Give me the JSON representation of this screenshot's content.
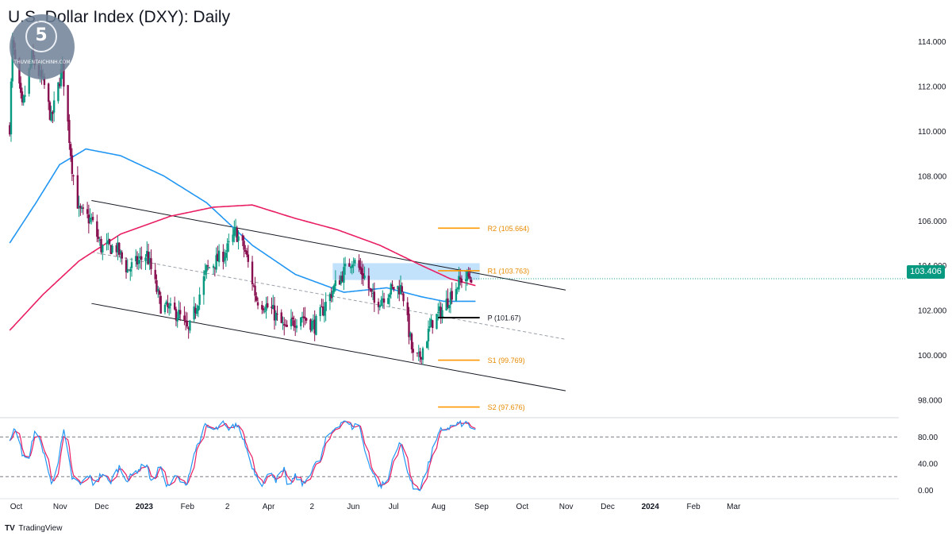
{
  "header": {
    "title": "U.S. Dollar Index (DXY): Daily"
  },
  "footer": {
    "brand_mark": "TV",
    "brand": "TradingView"
  },
  "watermark": {
    "mark": "5",
    "text": "THUVIENTAICHINH.COM",
    "icon": "logo-seal"
  },
  "colors": {
    "candle_up": "#089981",
    "candle_down": "#880e4f",
    "sma_fast": "#2196f3",
    "sma_slow": "#e91e63",
    "pivot_levels": "#ff9800",
    "pivot": "#000000",
    "resistance_zone": "#90c8f8",
    "channel": "#131722",
    "stoch_k": "#2196f3",
    "stoch_d": "#e91e63",
    "last_price_bg": "#089981"
  },
  "chart_data": [
    {
      "type": "candlestick",
      "title": "U.S. Dollar Index (DXY): Daily",
      "y_ticks": [
        "114.000",
        "112.000",
        "110.000",
        "108.000",
        "106.000",
        "104.000",
        "102.000",
        "100.000",
        "98.000"
      ],
      "ylim": [
        97.2,
        115.0
      ],
      "x_ticks": [
        "Oct",
        "Nov",
        "Dec",
        "2023",
        "Feb",
        "2",
        "Apr",
        "2",
        "Jun",
        "Jul",
        "Aug",
        "Sep",
        "Oct",
        "Nov",
        "Dec",
        "2024",
        "Feb",
        "Mar"
      ],
      "last_price": "103.406",
      "price_anchors": [
        [
          "2022-09-26",
          110.2
        ],
        [
          "2022-09-28",
          113.9
        ],
        [
          "2022-10-05",
          111.0
        ],
        [
          "2022-10-12",
          113.3
        ],
        [
          "2022-10-21",
          112.0
        ],
        [
          "2022-10-26",
          110.5
        ],
        [
          "2022-11-03",
          112.9
        ],
        [
          "2022-11-10",
          108.4
        ],
        [
          "2022-11-15",
          106.4
        ],
        [
          "2022-11-24",
          106.0
        ],
        [
          "2022-12-01",
          104.8
        ],
        [
          "2022-12-12",
          104.8
        ],
        [
          "2022-12-20",
          103.8
        ],
        [
          "2023-01-03",
          104.5
        ],
        [
          "2023-01-13",
          102.2
        ],
        [
          "2023-01-26",
          101.8
        ],
        [
          "2023-02-02",
          101.0
        ],
        [
          "2023-02-15",
          103.8
        ],
        [
          "2023-03-01",
          104.6
        ],
        [
          "2023-03-08",
          105.5
        ],
        [
          "2023-03-15",
          104.6
        ],
        [
          "2023-03-23",
          102.5
        ],
        [
          "2023-04-03",
          102.0
        ],
        [
          "2023-04-13",
          101.1
        ],
        [
          "2023-04-24",
          101.8
        ],
        [
          "2023-05-04",
          101.3
        ],
        [
          "2023-05-17",
          102.9
        ],
        [
          "2023-05-31",
          104.3
        ],
        [
          "2023-06-09",
          103.5
        ],
        [
          "2023-06-16",
          102.3
        ],
        [
          "2023-06-30",
          103.0
        ],
        [
          "2023-07-06",
          103.0
        ],
        [
          "2023-07-14",
          99.9
        ],
        [
          "2023-07-18",
          99.8
        ],
        [
          "2023-07-28",
          101.5
        ],
        [
          "2023-08-04",
          102.0
        ],
        [
          "2023-08-11",
          102.8
        ],
        [
          "2023-08-18",
          103.4
        ],
        [
          "2023-08-25",
          103.5
        ]
      ],
      "sma_fast_anchors": [
        [
          "2022-09-26",
          105.0
        ],
        [
          "2022-10-15",
          106.8
        ],
        [
          "2022-11-01",
          108.5
        ],
        [
          "2022-11-20",
          109.2
        ],
        [
          "2022-12-15",
          108.9
        ],
        [
          "2023-01-15",
          108.0
        ],
        [
          "2023-02-15",
          106.8
        ],
        [
          "2023-03-20",
          104.9
        ],
        [
          "2023-04-20",
          103.6
        ],
        [
          "2023-05-25",
          102.8
        ],
        [
          "2023-06-25",
          103.0
        ],
        [
          "2023-07-20",
          102.6
        ],
        [
          "2023-08-05",
          102.4
        ],
        [
          "2023-08-28",
          102.4
        ]
      ],
      "sma_slow_anchors": [
        [
          "2022-09-26",
          101.1
        ],
        [
          "2022-10-20",
          102.7
        ],
        [
          "2022-11-15",
          104.2
        ],
        [
          "2022-12-15",
          105.4
        ],
        [
          "2023-01-20",
          106.2
        ],
        [
          "2023-02-20",
          106.6
        ],
        [
          "2023-03-20",
          106.7
        ],
        [
          "2023-04-20",
          106.1
        ],
        [
          "2023-05-20",
          105.6
        ],
        [
          "2023-06-20",
          104.9
        ],
        [
          "2023-07-20",
          104.0
        ],
        [
          "2023-08-10",
          103.4
        ],
        [
          "2023-08-28",
          103.1
        ]
      ],
      "channel_lines": [
        {
          "from": [
            "2022-11-24",
            106.9
          ],
          "to": [
            "2023-11-01",
            102.9
          ]
        },
        {
          "from": [
            "2022-11-24",
            104.6
          ],
          "to": [
            "2023-11-01",
            100.7
          ],
          "dashed": true
        },
        {
          "from": [
            "2022-11-24",
            102.3
          ],
          "to": [
            "2023-11-01",
            98.4
          ]
        }
      ],
      "resistance_zone": {
        "from": "2023-05-17",
        "to": "2023-08-31",
        "low": 103.35,
        "high": 104.1
      },
      "pivot_levels": [
        {
          "label": "R2 (105.664)",
          "value": 105.664,
          "kind": "pivot_levels"
        },
        {
          "label": "R1 (103.763)",
          "value": 103.763,
          "kind": "pivot_levels"
        },
        {
          "label": "P (101.67)",
          "value": 101.67,
          "kind": "pivot"
        },
        {
          "label": "S1 (99.769)",
          "value": 99.769,
          "kind": "pivot_levels"
        },
        {
          "label": "S2 (97.676)",
          "value": 97.676,
          "kind": "pivot_levels"
        }
      ],
      "pivot_period": {
        "from": "2023-08-01",
        "to": "2023-08-31"
      }
    },
    {
      "type": "line",
      "title": "",
      "y_ticks": [
        "80.00",
        "40.00",
        "0.00"
      ],
      "ylim": [
        -8,
        108
      ],
      "reference_lines": [
        80,
        20
      ],
      "k_anchors": [
        [
          "2022-09-26",
          70
        ],
        [
          "2022-09-30",
          95
        ],
        [
          "2022-10-05",
          55
        ],
        [
          "2022-10-10",
          45
        ],
        [
          "2022-10-14",
          92
        ],
        [
          "2022-10-21",
          55
        ],
        [
          "2022-10-26",
          8
        ],
        [
          "2022-10-31",
          45
        ],
        [
          "2022-11-04",
          88
        ],
        [
          "2022-11-10",
          18
        ],
        [
          "2022-11-16",
          8
        ],
        [
          "2022-11-22",
          22
        ],
        [
          "2022-11-25",
          10
        ],
        [
          "2022-12-02",
          25
        ],
        [
          "2022-12-07",
          10
        ],
        [
          "2022-12-14",
          35
        ],
        [
          "2022-12-20",
          15
        ],
        [
          "2022-12-27",
          30
        ],
        [
          "2023-01-03",
          40
        ],
        [
          "2023-01-06",
          10
        ],
        [
          "2023-01-12",
          35
        ],
        [
          "2023-01-18",
          5
        ],
        [
          "2023-01-24",
          20
        ],
        [
          "2023-01-31",
          5
        ],
        [
          "2023-02-06",
          55
        ],
        [
          "2023-02-14",
          96
        ],
        [
          "2023-02-21",
          90
        ],
        [
          "2023-02-27",
          100
        ],
        [
          "2023-03-03",
          88
        ],
        [
          "2023-03-08",
          100
        ],
        [
          "2023-03-13",
          80
        ],
        [
          "2023-03-21",
          30
        ],
        [
          "2023-03-27",
          10
        ],
        [
          "2023-04-03",
          28
        ],
        [
          "2023-04-06",
          15
        ],
        [
          "2023-04-12",
          30
        ],
        [
          "2023-04-14",
          5
        ],
        [
          "2023-04-20",
          20
        ],
        [
          "2023-04-26",
          8
        ],
        [
          "2023-05-03",
          35
        ],
        [
          "2023-05-08",
          45
        ],
        [
          "2023-05-12",
          75
        ],
        [
          "2023-05-19",
          95
        ],
        [
          "2023-05-25",
          105
        ],
        [
          "2023-05-31",
          95
        ],
        [
          "2023-06-05",
          100
        ],
        [
          "2023-06-09",
          60
        ],
        [
          "2023-06-15",
          25
        ],
        [
          "2023-06-20",
          5
        ],
        [
          "2023-06-26",
          15
        ],
        [
          "2023-06-30",
          55
        ],
        [
          "2023-07-05",
          70
        ],
        [
          "2023-07-12",
          15
        ],
        [
          "2023-07-14",
          2
        ],
        [
          "2023-07-19",
          3
        ],
        [
          "2023-07-24",
          30
        ],
        [
          "2023-07-28",
          60
        ],
        [
          "2023-08-03",
          90
        ],
        [
          "2023-08-10",
          95
        ],
        [
          "2023-08-16",
          100
        ],
        [
          "2023-08-22",
          100
        ],
        [
          "2023-08-28",
          88
        ]
      ]
    }
  ]
}
